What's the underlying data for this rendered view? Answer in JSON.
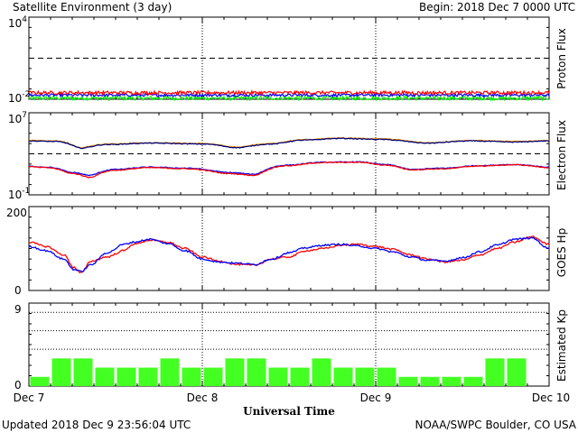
{
  "header": {
    "title": "Satellite Environment (3 day)",
    "begin": "Begin:  2018 Dec 7 0000 UTC"
  },
  "footer": {
    "updated": "Updated 2018 Dec  9 23:56:04 UTC",
    "credit": "NOAA/SWPC Boulder, CO USA"
  },
  "xaxis": {
    "title": "Universal Time",
    "ticks": [
      "Dec 7",
      "Dec 8",
      "Dec 9",
      "Dec 10"
    ]
  },
  "colors": {
    "red": "#ff0000",
    "blue": "#0000ff",
    "green": "#00ee00",
    "orange": "#ffa000",
    "darkblue": "#00007a",
    "kp_bar": "#44ff22"
  },
  "chart_data": [
    {
      "type": "line",
      "ylabel": "Proton Flux",
      "yscale": "log",
      "ylim": [
        0.01,
        10000
      ],
      "ytick_labels": [
        {
          "base": "10",
          "exp": "4"
        },
        {
          "base": "10",
          "exp": "-2"
        }
      ],
      "threshold": 10,
      "x_days": [
        0,
        3
      ],
      "series": [
        {
          "color": "red",
          "level": 0.03,
          "noise": 0.12
        },
        {
          "color": "blue",
          "level": 0.02,
          "noise": 0.1
        },
        {
          "color": "green",
          "level": 0.012,
          "noise": 0.14
        }
      ]
    },
    {
      "type": "line",
      "ylabel": "Electron Flux",
      "yscale": "log",
      "ylim": [
        0.1,
        10000000
      ],
      "ytick_labels": [
        {
          "base": "10",
          "exp": "7"
        },
        {
          "base": "10",
          "exp": "-1"
        }
      ],
      "threshold": 1000,
      "x_days": [
        0,
        3
      ],
      "series": [
        {
          "color": "orange",
          "points": [
            [
              0,
              20000.0
            ],
            [
              0.15,
              18000.0
            ],
            [
              0.3,
              4000.0
            ],
            [
              0.45,
              9000.0
            ],
            [
              0.7,
              12000.0
            ],
            [
              1.0,
              10000.0
            ],
            [
              1.2,
              4500.0
            ],
            [
              1.4,
              10000.0
            ],
            [
              1.6,
              25000.0
            ],
            [
              1.8,
              35000.0
            ],
            [
              2.0,
              30000.0
            ],
            [
              2.3,
              12000.0
            ],
            [
              2.55,
              20000.0
            ],
            [
              2.8,
              16000.0
            ],
            [
              3.0,
              20000.0
            ]
          ]
        },
        {
          "color": "darkblue",
          "points": [
            [
              0,
              18000.0
            ],
            [
              0.15,
              16000.0
            ],
            [
              0.3,
              3600.0
            ],
            [
              0.45,
              8000.0
            ],
            [
              0.7,
              11000.0
            ],
            [
              1.0,
              9000.0
            ],
            [
              1.2,
              4000.0
            ],
            [
              1.4,
              9000.0
            ],
            [
              1.6,
              22000.0
            ],
            [
              1.8,
              32000.0
            ],
            [
              2.0,
              26000.0
            ],
            [
              2.3,
              11000.0
            ],
            [
              2.55,
              18000.0
            ],
            [
              2.8,
              14000.0
            ],
            [
              3.0,
              18000.0
            ]
          ]
        },
        {
          "color": "blue",
          "points": [
            [
              0,
              60
            ],
            [
              0.1,
              50
            ],
            [
              0.25,
              15
            ],
            [
              0.35,
              8
            ],
            [
              0.5,
              30
            ],
            [
              0.7,
              50
            ],
            [
              0.9,
              40
            ],
            [
              1.15,
              15
            ],
            [
              1.3,
              10
            ],
            [
              1.5,
              80
            ],
            [
              1.7,
              150
            ],
            [
              1.9,
              160
            ],
            [
              2.05,
              90
            ],
            [
              2.2,
              30
            ],
            [
              2.4,
              40
            ],
            [
              2.6,
              70
            ],
            [
              2.8,
              90
            ],
            [
              3.0,
              50
            ]
          ]
        },
        {
          "color": "red",
          "points": [
            [
              0,
              55
            ],
            [
              0.1,
              45
            ],
            [
              0.25,
              12
            ],
            [
              0.35,
              5
            ],
            [
              0.5,
              25
            ],
            [
              0.7,
              45
            ],
            [
              0.9,
              35
            ],
            [
              1.15,
              12
            ],
            [
              1.3,
              8
            ],
            [
              1.5,
              70
            ],
            [
              1.7,
              140
            ],
            [
              1.9,
              150
            ],
            [
              2.05,
              80
            ],
            [
              2.2,
              28
            ],
            [
              2.4,
              35
            ],
            [
              2.6,
              65
            ],
            [
              2.8,
              85
            ],
            [
              3.0,
              45
            ]
          ]
        }
      ]
    },
    {
      "type": "line",
      "ylabel": "GOES Hp",
      "yscale": "linear",
      "ylim": [
        0,
        200
      ],
      "ytick_labels": [
        "200",
        "0"
      ],
      "x_days": [
        0,
        3
      ],
      "series": [
        {
          "color": "red",
          "points": [
            [
              0,
              115
            ],
            [
              0.1,
              105
            ],
            [
              0.2,
              85
            ],
            [
              0.26,
              55
            ],
            [
              0.3,
              42
            ],
            [
              0.36,
              70
            ],
            [
              0.45,
              80
            ],
            [
              0.55,
              95
            ],
            [
              0.6,
              110
            ],
            [
              0.7,
              120
            ],
            [
              0.8,
              115
            ],
            [
              0.9,
              100
            ],
            [
              1.0,
              80
            ],
            [
              1.1,
              70
            ],
            [
              1.2,
              62
            ],
            [
              1.3,
              60
            ],
            [
              1.4,
              75
            ],
            [
              1.5,
              80
            ],
            [
              1.6,
              95
            ],
            [
              1.7,
              100
            ],
            [
              1.8,
              108
            ],
            [
              1.9,
              110
            ],
            [
              2.0,
              105
            ],
            [
              2.1,
              98
            ],
            [
              2.2,
              85
            ],
            [
              2.3,
              75
            ],
            [
              2.4,
              68
            ],
            [
              2.5,
              72
            ],
            [
              2.6,
              85
            ],
            [
              2.7,
              100
            ],
            [
              2.8,
              115
            ],
            [
              2.9,
              128
            ],
            [
              3.0,
              110
            ]
          ]
        },
        {
          "color": "blue",
          "points": [
            [
              0,
              105
            ],
            [
              0.1,
              95
            ],
            [
              0.2,
              75
            ],
            [
              0.26,
              50
            ],
            [
              0.3,
              45
            ],
            [
              0.36,
              62
            ],
            [
              0.45,
              90
            ],
            [
              0.55,
              110
            ],
            [
              0.6,
              115
            ],
            [
              0.7,
              122
            ],
            [
              0.8,
              112
            ],
            [
              0.9,
              95
            ],
            [
              1.0,
              75
            ],
            [
              1.1,
              68
            ],
            [
              1.2,
              65
            ],
            [
              1.3,
              62
            ],
            [
              1.4,
              75
            ],
            [
              1.5,
              90
            ],
            [
              1.6,
              102
            ],
            [
              1.7,
              108
            ],
            [
              1.8,
              110
            ],
            [
              1.9,
              106
            ],
            [
              2.0,
              100
            ],
            [
              2.1,
              92
            ],
            [
              2.2,
              80
            ],
            [
              2.3,
              72
            ],
            [
              2.4,
              70
            ],
            [
              2.5,
              78
            ],
            [
              2.6,
              92
            ],
            [
              2.7,
              108
            ],
            [
              2.8,
              122
            ],
            [
              2.9,
              125
            ],
            [
              3.0,
              100
            ]
          ]
        }
      ]
    },
    {
      "type": "bar",
      "ylabel": "Estimated Kp",
      "ylim": [
        0,
        9
      ],
      "ytick_labels": [
        "9",
        "0"
      ],
      "hlines": [
        9,
        8,
        6,
        4
      ],
      "values": [
        1,
        3,
        3,
        2,
        2,
        2,
        3,
        2,
        2,
        3,
        3,
        2,
        2,
        3,
        2,
        2,
        2,
        1,
        1,
        1,
        1,
        3,
        3,
        0
      ]
    }
  ]
}
